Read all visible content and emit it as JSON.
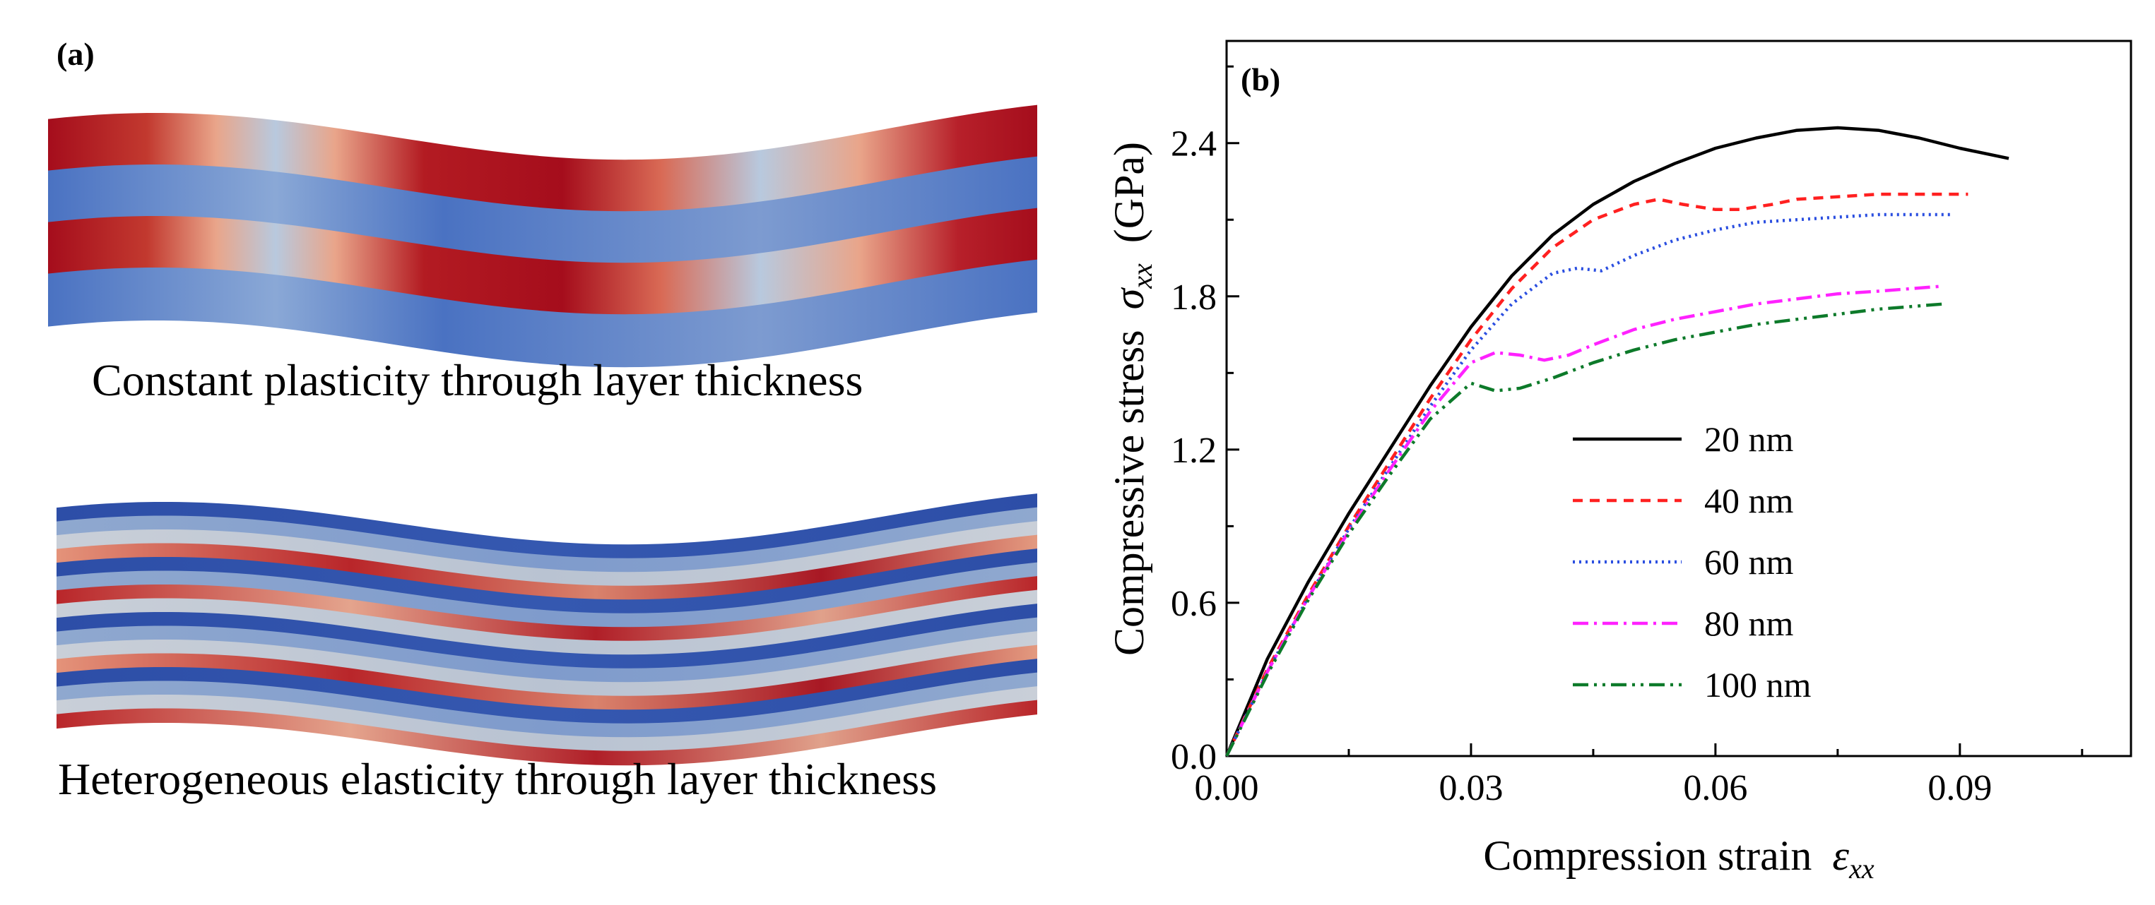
{
  "panel_a": {
    "label": "(a)",
    "caption_top": "Constant plasticity through layer thickness",
    "caption_bottom": "Heterogeneous elasticity through layer thickness",
    "colors": {
      "red": "#a50d1c",
      "mid": "#b9c8d6",
      "blue": "#4a6fbf",
      "dark_blue": "#2e4fa6",
      "light": "#e8a58c"
    }
  },
  "chart_data": {
    "type": "line",
    "panel_label": "(b)",
    "xlabel": "Compression strain",
    "xlabel_symbol": "ε",
    "xlabel_sub": "xx",
    "ylabel": "Compressive stress",
    "ylabel_symbol": "σ",
    "ylabel_sub": "xx",
    "ylabel_unit": "(GPa)",
    "xlim": [
      0,
      0.111
    ],
    "ylim": [
      0,
      2.8
    ],
    "xticks": [
      0.0,
      0.03,
      0.06,
      0.09
    ],
    "xtick_labels": [
      "0.00",
      "0.03",
      "0.06",
      "0.09"
    ],
    "yticks": [
      0.0,
      0.6,
      1.2,
      1.8,
      2.4
    ],
    "ytick_labels": [
      "0.0",
      "0.6",
      "1.2",
      "1.8",
      "2.4"
    ],
    "legend_position": "center-right",
    "series": [
      {
        "name": "20 nm",
        "color": "#000000",
        "dash": "",
        "x": [
          0,
          0.005,
          0.01,
          0.015,
          0.02,
          0.025,
          0.03,
          0.035,
          0.04,
          0.045,
          0.05,
          0.055,
          0.06,
          0.065,
          0.07,
          0.075,
          0.08,
          0.085,
          0.09,
          0.096
        ],
        "y": [
          0,
          0.38,
          0.68,
          0.95,
          1.2,
          1.45,
          1.68,
          1.88,
          2.04,
          2.16,
          2.25,
          2.32,
          2.38,
          2.42,
          2.45,
          2.46,
          2.45,
          2.42,
          2.38,
          2.34
        ]
      },
      {
        "name": "40 nm",
        "color": "#ff2020",
        "dash": "14,10",
        "x": [
          0,
          0.005,
          0.01,
          0.015,
          0.02,
          0.025,
          0.03,
          0.035,
          0.04,
          0.045,
          0.05,
          0.053,
          0.056,
          0.06,
          0.063,
          0.067,
          0.07,
          0.075,
          0.08,
          0.085,
          0.091
        ],
        "y": [
          0,
          0.34,
          0.63,
          0.9,
          1.15,
          1.4,
          1.63,
          1.83,
          1.99,
          2.1,
          2.16,
          2.18,
          2.16,
          2.14,
          2.14,
          2.16,
          2.18,
          2.19,
          2.2,
          2.2,
          2.2
        ]
      },
      {
        "name": "60 nm",
        "color": "#2a4ee0",
        "dash": "3,6",
        "x": [
          0,
          0.005,
          0.01,
          0.015,
          0.02,
          0.025,
          0.03,
          0.035,
          0.04,
          0.043,
          0.046,
          0.05,
          0.055,
          0.06,
          0.065,
          0.07,
          0.075,
          0.08,
          0.085,
          0.089
        ],
        "y": [
          0,
          0.33,
          0.62,
          0.89,
          1.13,
          1.37,
          1.59,
          1.77,
          1.89,
          1.91,
          1.9,
          1.96,
          2.02,
          2.06,
          2.09,
          2.1,
          2.11,
          2.12,
          2.12,
          2.12
        ]
      },
      {
        "name": "80 nm",
        "color": "#ff22ff",
        "dash": "22,8,4,8",
        "x": [
          0,
          0.005,
          0.01,
          0.015,
          0.02,
          0.025,
          0.03,
          0.033,
          0.036,
          0.039,
          0.042,
          0.045,
          0.05,
          0.055,
          0.06,
          0.065,
          0.07,
          0.075,
          0.08,
          0.088
        ],
        "y": [
          0,
          0.33,
          0.62,
          0.88,
          1.12,
          1.35,
          1.54,
          1.58,
          1.57,
          1.55,
          1.57,
          1.61,
          1.67,
          1.71,
          1.74,
          1.77,
          1.79,
          1.81,
          1.82,
          1.84
        ]
      },
      {
        "name": "100 nm",
        "color": "#0d7a2a",
        "dash": "22,8,4,8,4,8",
        "x": [
          0,
          0.005,
          0.01,
          0.015,
          0.02,
          0.025,
          0.03,
          0.033,
          0.036,
          0.04,
          0.045,
          0.05,
          0.055,
          0.06,
          0.065,
          0.07,
          0.075,
          0.08,
          0.088
        ],
        "y": [
          0,
          0.32,
          0.61,
          0.87,
          1.1,
          1.32,
          1.46,
          1.43,
          1.44,
          1.48,
          1.54,
          1.59,
          1.63,
          1.66,
          1.69,
          1.71,
          1.73,
          1.75,
          1.77
        ]
      }
    ]
  }
}
